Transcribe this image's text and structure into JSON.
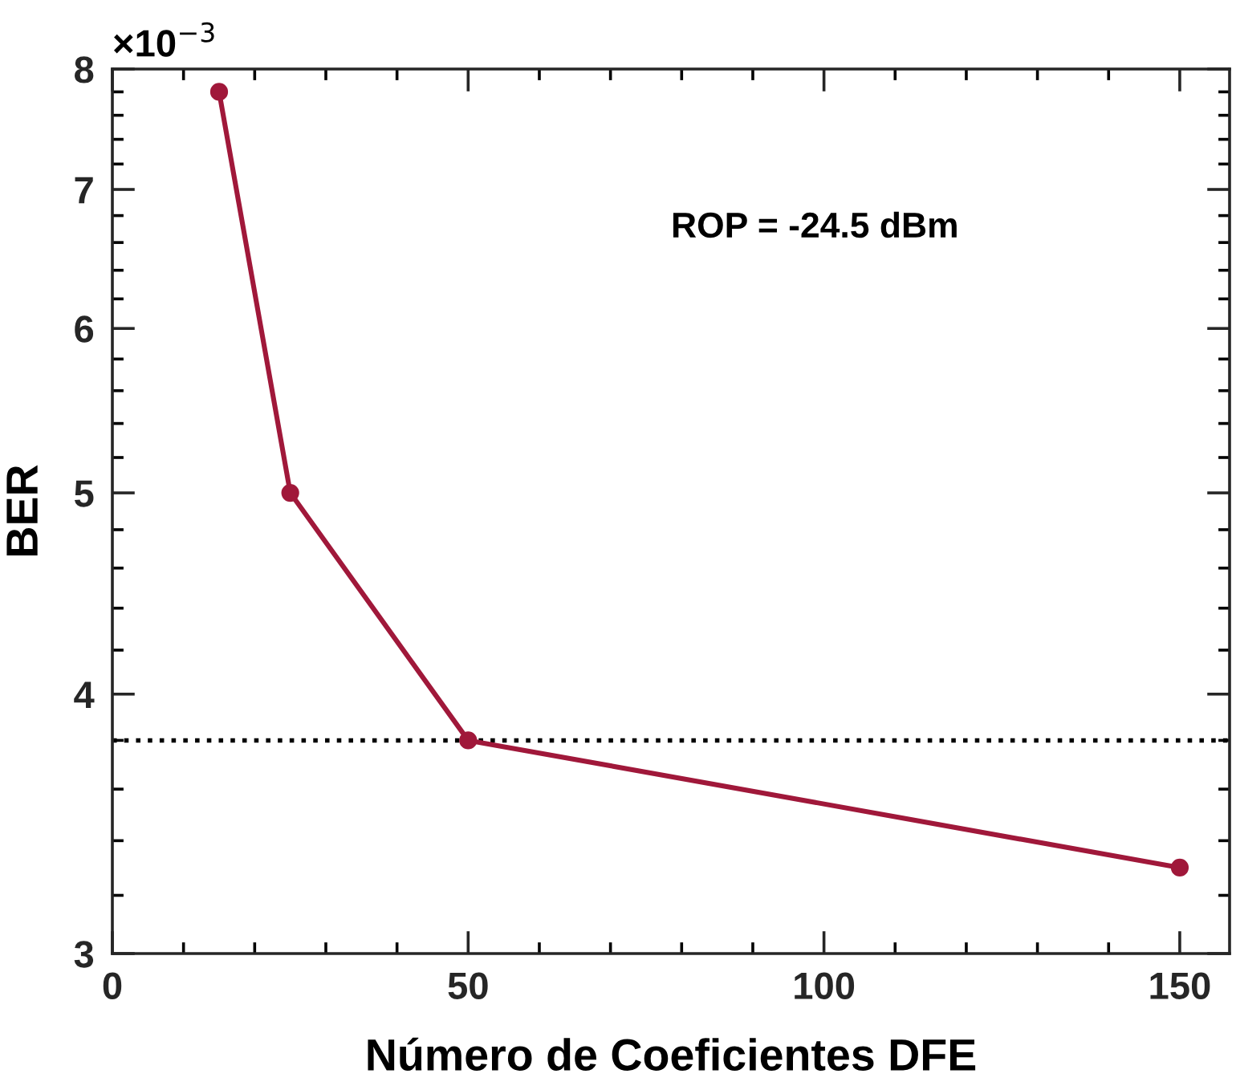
{
  "chart_data": {
    "type": "line",
    "xlabel": "Número de Coeficientes DFE",
    "ylabel": "BER",
    "x": [
      15,
      25,
      50,
      150
    ],
    "series": [
      {
        "color": "#a0183a",
        "values": [
          7.8,
          5.0,
          3.8,
          3.3
        ]
      }
    ],
    "marker": "circle",
    "line_style": "solid",
    "log": "y",
    "grid": false,
    "legend": false,
    "xlim": [
      0,
      157
    ],
    "xticks": [
      0,
      50,
      100,
      150
    ],
    "ylim": [
      3,
      8
    ],
    "yticks": [
      3,
      4,
      5,
      6,
      7,
      8
    ],
    "ref_lines": [
      {
        "axis": "y",
        "value": 3.8,
        "color": "#000000",
        "line_style": "dotted"
      }
    ],
    "annotations": [
      "×10$^{−3}$",
      "ROP = -24.5 dBm"
    ]
  }
}
